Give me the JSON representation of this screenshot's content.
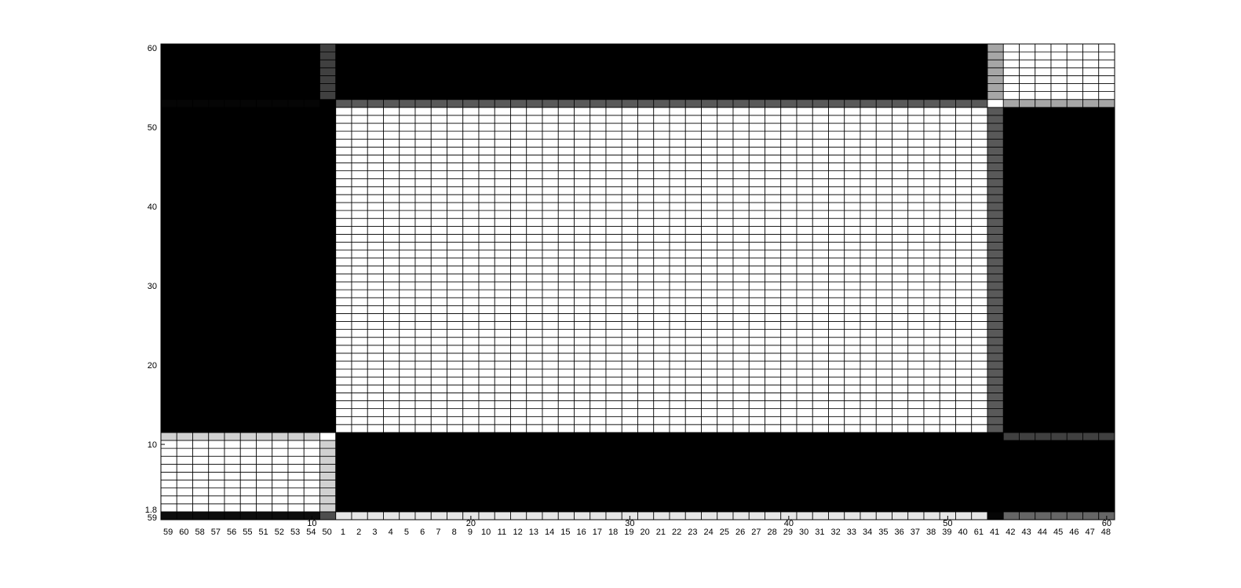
{
  "chart_data": {
    "type": "heatmap",
    "title": "",
    "xlabel": "",
    "ylabel": "",
    "xlim": [
      0.5,
      60.5
    ],
    "ylim": [
      0.5,
      60.5
    ],
    "grid": false,
    "colormap": "gray",
    "y_ticks": [
      10,
      20,
      30,
      40,
      50,
      60
    ],
    "x_ticks": [
      10,
      20,
      30,
      40,
      50,
      60
    ],
    "bottom_axis_labels": [
      "59",
      "60",
      "58",
      "57",
      "56",
      "55",
      "51",
      "52",
      "53",
      "54",
      "50",
      "1",
      "2",
      "3",
      "4",
      "5",
      "6",
      "7",
      "8",
      "9",
      "10",
      "11",
      "12",
      "13",
      "14",
      "15",
      "16",
      "17",
      "18",
      "19",
      "20",
      "21",
      "22",
      "23",
      "24",
      "25",
      "26",
      "27",
      "28",
      "29",
      "30",
      "31",
      "32",
      "33",
      "34",
      "35",
      "36",
      "37",
      "38",
      "39",
      "40",
      "61",
      "41",
      "42",
      "43",
      "44",
      "45",
      "46",
      "47",
      "48"
    ],
    "left_overlap_labels": [
      "1.8",
      "59"
    ],
    "column_blocks": [
      {
        "name": "A",
        "from": 1,
        "to": 10
      },
      {
        "name": "B",
        "from": 11,
        "to": 11
      },
      {
        "name": "C",
        "from": 12,
        "to": 52
      },
      {
        "name": "D",
        "from": 53,
        "to": 53
      },
      {
        "name": "E",
        "from": 54,
        "to": 60
      }
    ],
    "row_blocks": [
      {
        "name": "bottom-strip",
        "from": 1,
        "to": 1
      },
      {
        "name": "R1",
        "from": 2,
        "to": 6
      },
      {
        "name": "R2",
        "from": 7,
        "to": 10
      },
      {
        "name": "R3",
        "from": 11,
        "to": 11
      },
      {
        "name": "R4",
        "from": 12,
        "to": 52
      },
      {
        "name": "R5",
        "from": 53,
        "to": 53
      },
      {
        "name": "R6",
        "from": 54,
        "to": 60
      }
    ],
    "block_values": {
      "R6": {
        "A": 0,
        "B": 0.25,
        "C": 0,
        "D": 0.65,
        "E": 1
      },
      "R5": {
        "A": 0.02,
        "B": 0,
        "C": 0.35,
        "D": 1,
        "E": 0.65
      },
      "R4": {
        "A": 0,
        "B": 0,
        "C": 1,
        "D": 0.35,
        "E": 0
      },
      "R3": {
        "A": 0.82,
        "B": 1,
        "C": 0,
        "D": 0,
        "E": 0.25
      },
      "R2": {
        "A": 1,
        "B": 0.82,
        "C": 0,
        "D": 0,
        "E": 0
      },
      "R1": {
        "A": 1,
        "B": 0.82,
        "C": 0,
        "D": 0,
        "E": 0
      },
      "bottom-strip": {
        "A": 0.05,
        "B": 0.3,
        "C": 0.9,
        "D": 0.02,
        "E": 0.4
      }
    }
  }
}
